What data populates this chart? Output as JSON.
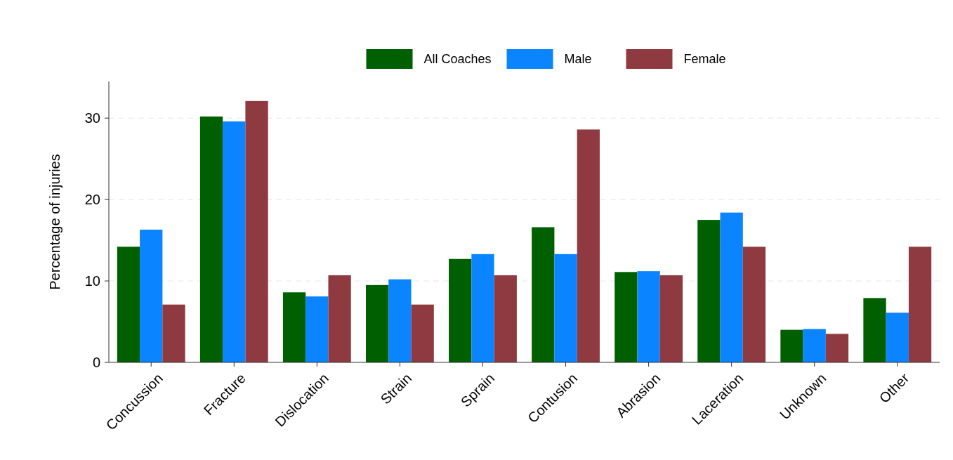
{
  "chart_data": {
    "type": "bar",
    "ylabel": "Percentage of injuries",
    "categories": [
      "Concussion",
      "Fracture",
      "Dislocation",
      "Strain",
      "Sprain",
      "Contusion",
      "Abrasion",
      "Laceration",
      "Unknown",
      "Other"
    ],
    "series": [
      {
        "name": "All Coaches",
        "color": "#005f00",
        "values": [
          14.2,
          30.2,
          8.6,
          9.5,
          12.7,
          16.6,
          11.1,
          17.5,
          4.0,
          7.9
        ]
      },
      {
        "name": "Male",
        "color": "#0a84ff",
        "values": [
          16.3,
          29.6,
          8.1,
          10.2,
          13.3,
          13.3,
          11.2,
          18.4,
          4.1,
          6.1
        ]
      },
      {
        "name": "Female",
        "color": "#8e3a40",
        "values": [
          7.1,
          32.1,
          10.7,
          7.1,
          10.7,
          28.6,
          10.7,
          14.2,
          3.5,
          14.2
        ]
      }
    ],
    "ylim": [
      0,
      34.5
    ],
    "yticks": [
      0,
      10,
      20,
      30
    ],
    "grid": "y",
    "legend": "top"
  }
}
